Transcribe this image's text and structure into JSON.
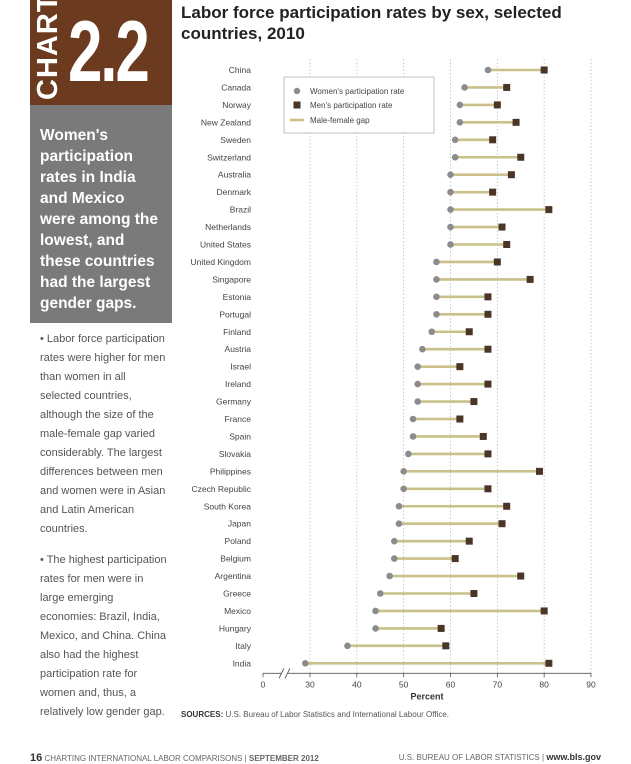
{
  "header": {
    "chart_word": "CHART",
    "chart_number": "2.2",
    "title": "Labor force participation rates by sex, selected countries, 2010"
  },
  "sidebar": {
    "headline": "Women's participation rates in India and Mexico were among the lowest, and these countries had the largest gender gaps.",
    "bullet1": "• Labor force participation rates were higher for men than women in all selected countries, although the size of the male-female gap varied considerably. The largest differences between men and women were in Asian and Latin American countries.",
    "bullet2": "• The highest participation rates for men were in large emerging economies: Brazil, India, Mexico, and China. China also had the highest participation rate for women and, thus, a relatively low gender gap."
  },
  "source": {
    "label": "SOURCES:",
    "text": "U.S. Bureau of Labor Statistics and International Labour Office."
  },
  "footer": {
    "page": "16",
    "publication": "CHARTING INTERNATIONAL LABOR COMPARISONS",
    "date": "SEPTEMBER 2012",
    "agency": "U.S. BUREAU OF LABOR STATISTICS",
    "url": "www.bls.gov"
  },
  "colors": {
    "women": "#8c8c8c",
    "men": "#4a3526",
    "gap": "#c9c08a",
    "brand": "#6b3a1f",
    "panel": "#7a7a7a"
  },
  "chart_data": {
    "type": "dumbbell",
    "xlabel": "Percent",
    "x_ticks": [
      "0",
      "30",
      "40",
      "50",
      "60",
      "70",
      "80",
      "90"
    ],
    "axis_break_after": 0,
    "xlim": [
      20,
      90
    ],
    "legend": {
      "placement": "top-left",
      "items": [
        "Women's participation rate",
        "Men's participation rate",
        "Male-female gap"
      ]
    },
    "categories": [
      "China",
      "Canada",
      "Norway",
      "New Zealand",
      "Sweden",
      "Switzerland",
      "Australia",
      "Denmark",
      "Brazil",
      "Netherlands",
      "United States",
      "United Kingdom",
      "Singapore",
      "Estonia",
      "Portugal",
      "Finland",
      "Austria",
      "Israel",
      "Ireland",
      "Germany",
      "France",
      "Spain",
      "Slovakia",
      "Philippines",
      "Czech Republic",
      "South Korea",
      "Japan",
      "Poland",
      "Belgium",
      "Argentina",
      "Greece",
      "Mexico",
      "Hungary",
      "Italy",
      "India"
    ],
    "series": [
      {
        "name": "Women's participation rate",
        "values": [
          68,
          63,
          62,
          62,
          61,
          61,
          60,
          60,
          60,
          60,
          60,
          57,
          57,
          57,
          57,
          56,
          54,
          53,
          53,
          53,
          52,
          52,
          51,
          50,
          50,
          49,
          49,
          48,
          48,
          47,
          45,
          44,
          44,
          38,
          29
        ]
      },
      {
        "name": "Men's participation rate",
        "values": [
          80,
          72,
          70,
          74,
          69,
          75,
          73,
          69,
          81,
          71,
          72,
          70,
          77,
          68,
          68,
          64,
          68,
          62,
          68,
          65,
          62,
          67,
          68,
          79,
          68,
          72,
          71,
          64,
          61,
          75,
          65,
          80,
          58,
          59,
          81
        ]
      }
    ]
  }
}
